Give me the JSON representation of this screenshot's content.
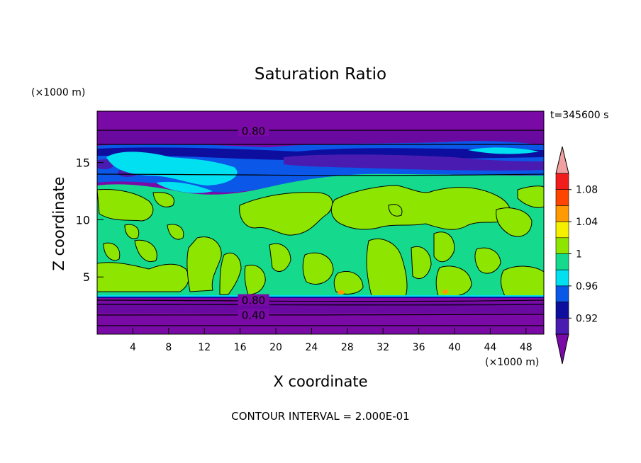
{
  "chart_data": {
    "type": "heatmap",
    "title": "Saturation Ratio",
    "xlabel": "X coordinate",
    "ylabel": "Z coordinate",
    "x_unit": "(×1000 m)",
    "y_unit": "(×1000 m)",
    "time_label": "t=345600 s",
    "footer": "CONTOUR INTERVAL = 2.000E-01",
    "xlim": [
      0,
      50
    ],
    "ylim": [
      0,
      19.5
    ],
    "x_ticks": [
      4,
      8,
      12,
      16,
      20,
      24,
      28,
      32,
      36,
      40,
      44,
      48
    ],
    "y_ticks": [
      5,
      10,
      15
    ],
    "contour_labels": [
      {
        "text": "0.80",
        "x": 17.5,
        "z": 17.8
      },
      {
        "text": "0.80",
        "x": 17.5,
        "z": 3.0
      },
      {
        "text": "0.40",
        "x": 17.5,
        "z": 1.7
      }
    ],
    "colorbar": {
      "levels": [
        0.92,
        0.94,
        0.96,
        0.98,
        1.0,
        1.02,
        1.04,
        1.06,
        1.08
      ],
      "labels": [
        "0.92",
        "0.96",
        "1",
        "1.04",
        "1.08"
      ],
      "colors": [
        "#7a0aa6",
        "#4a1bb0",
        "#0d0d9e",
        "#0a57e8",
        "#00e0f0",
        "#15d98c",
        "#8ee600",
        "#f5f000",
        "#ff9a00",
        "#ff4400",
        "#f21c1c",
        "#f0a0a0"
      ]
    },
    "layers": [
      {
        "name": "lower-purple",
        "z": [
          0,
          3.3
        ],
        "level": "<0.92"
      },
      {
        "name": "lower-green",
        "z": [
          3.5,
          14.2
        ],
        "level": "0.98-1.02",
        "patches": "1.00-1.02"
      },
      {
        "name": "cloud-band",
        "z": [
          14.2,
          17
        ],
        "level": "0.92-0.98"
      },
      {
        "name": "upper-purple",
        "z": [
          17,
          19.5
        ],
        "level": "<0.92"
      }
    ]
  }
}
